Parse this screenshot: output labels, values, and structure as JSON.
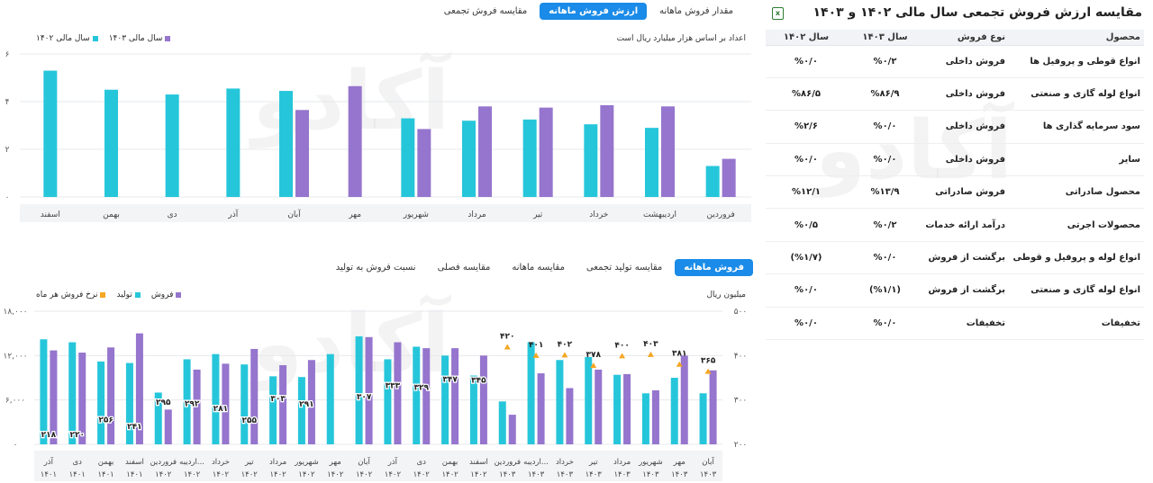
{
  "watermark": "آکادو",
  "table_panel": {
    "title": "مقایسه ارزش فروش تجمعی سال مالی ۱۴۰۲ و ۱۴۰۳",
    "icon": "excel-export-icon",
    "headers": [
      "محصول",
      "نوع فروش",
      "سال ۱۴۰۳",
      "سال ۱۴۰۲"
    ],
    "rows": [
      [
        "انواع قوطی و پروفیل ها",
        "فروش داخلی",
        "%۰/۲",
        "%۰/۰"
      ],
      [
        "انواع لوله گازی و صنعتی",
        "فروش داخلی",
        "%۸۶/۹",
        "%۸۶/۵"
      ],
      [
        "سود سرمایه گذاری ها",
        "فروش داخلی",
        "%۰/۰",
        "%۲/۶"
      ],
      [
        "سایر",
        "فروش داخلی",
        "%۰/۰",
        "%۰/۰"
      ],
      [
        "محصول صادراتی",
        "فروش صادراتی",
        "%۱۳/۹",
        "%۱۲/۱"
      ],
      [
        "محصولات اجرتی",
        "درآمد ارائه خدمات",
        "%۰/۲",
        "%۰/۵"
      ],
      [
        "انواع لوله و پروفیل و قوطی",
        "برگشت از فروش",
        "%۰/۰",
        "(%۱/۷)"
      ],
      [
        "انواع لوله گازی و صنعتی",
        "برگشت از فروش",
        "(%۱/۱)",
        "%۰/۰"
      ],
      [
        "تخفیفات",
        "تخفیفات",
        "%۰/۰",
        "%۰/۰"
      ]
    ]
  },
  "top_chart": {
    "tabs": [
      "مقدار فروش ماهانه",
      "ارزش فروش ماهانه",
      "مقایسه فروش تجمعی"
    ],
    "active_tab": 1,
    "note": "اعداد بر اساس هزار میلیارد ریال است",
    "legend": [
      {
        "label": "سال مالی ۱۴۰۳",
        "color": "#9575cd"
      },
      {
        "label": "سال مالی ۱۴۰۲",
        "color": "#26c6da"
      }
    ]
  },
  "bottom_chart": {
    "tabs": [
      "فروش ماهانه",
      "مقایسه تولید تجمعی",
      "مقایسه ماهانه",
      "مقایسه فصلی",
      "نسبت فروش به تولید"
    ],
    "active_tab": 0,
    "unit_label": "میلیون ریال",
    "legend": [
      {
        "label": "فروش",
        "color": "#9575cd"
      },
      {
        "label": "تولید",
        "color": "#26c6da"
      },
      {
        "label": "نرخ فروش هر ماه",
        "color": "#f5a623"
      }
    ]
  },
  "chart_data": [
    {
      "type": "bar",
      "categories": [
        "فروردین",
        "اردیبهشت",
        "خرداد",
        "تیر",
        "مرداد",
        "شهریور",
        "مهر",
        "آبان",
        "آذر",
        "دی",
        "بهمن",
        "اسفند"
      ],
      "series": [
        {
          "name": "سال مالی ۱۴۰۲",
          "color": "#26c6da",
          "values": [
            1.3,
            2.9,
            3.05,
            3.25,
            3.2,
            3.3,
            null,
            4.45,
            4.55,
            4.3,
            4.5,
            5.3
          ]
        },
        {
          "name": "سال مالی ۱۴۰۳",
          "color": "#9575cd",
          "values": [
            1.6,
            3.8,
            3.85,
            3.75,
            3.8,
            2.85,
            4.65,
            3.65,
            null,
            null,
            null,
            null
          ]
        }
      ],
      "yticks": [
        "۰",
        "۲",
        "۴",
        "۶"
      ],
      "ylim": [
        0,
        6
      ],
      "grid": true
    },
    {
      "type": "bar",
      "categories": [
        [
          "آذر",
          "۱۴۰۱"
        ],
        [
          "دی",
          "۱۴۰۱"
        ],
        [
          "بهمن",
          "۱۴۰۱"
        ],
        [
          "اسفند",
          "۱۴۰۱"
        ],
        [
          "فروردین",
          "۱۴۰۲"
        ],
        [
          "اردیبه...",
          "۱۴۰۲"
        ],
        [
          "خرداد",
          "۱۴۰۲"
        ],
        [
          "تیر",
          "۱۴۰۲"
        ],
        [
          "مرداد",
          "۱۴۰۲"
        ],
        [
          "شهریور",
          "۱۴۰۲"
        ],
        [
          "مهر",
          "۱۴۰۲"
        ],
        [
          "آبان",
          "۱۴۰۲"
        ],
        [
          "آذر",
          "۱۴۰۲"
        ],
        [
          "دی",
          "۱۴۰۲"
        ],
        [
          "بهمن",
          "۱۴۰۲"
        ],
        [
          "اسفند",
          "۱۴۰۲"
        ],
        [
          "فروردین",
          "۱۴۰۳"
        ],
        [
          "اردیبه...",
          "۱۴۰۳"
        ],
        [
          "خرداد",
          "۱۴۰۳"
        ],
        [
          "تیر",
          "۱۴۰۳"
        ],
        [
          "مرداد",
          "۱۴۰۳"
        ],
        [
          "شهریور",
          "۱۴۰۳"
        ],
        [
          "مهر",
          "۱۴۰۳"
        ],
        [
          "آبان",
          "۱۴۰۳"
        ]
      ],
      "series": [
        {
          "name": "تولید",
          "color": "#26c6da",
          "values": [
            14200,
            13800,
            11200,
            11000,
            7000,
            11500,
            12200,
            10800,
            9200,
            9100,
            12200,
            14600,
            11500,
            13200,
            12000,
            9300,
            5800,
            13800,
            11400,
            11800,
            9400,
            6900,
            9000,
            6900
          ]
        },
        {
          "name": "فروش",
          "color": "#9575cd",
          "values": [
            12700,
            12400,
            13100,
            15000,
            4700,
            10100,
            10900,
            12900,
            10700,
            11400,
            0,
            14500,
            13800,
            13000,
            13000,
            12000,
            4000,
            9600,
            7600,
            10100,
            9500,
            7300,
            12000,
            10000
          ]
        }
      ],
      "data_labels": [
        "۲۱۸",
        "۲۲۰",
        "۲۵۶",
        "۲۴۱",
        "۲۹۵",
        "۲۹۲",
        "۲۸۱",
        "۲۵۵",
        "۳۰۳",
        "۲۹۱",
        "",
        "۳۰۷",
        "۳۳۳",
        "۳۲۹",
        "۳۴۷",
        "۳۴۵",
        "۴۲۰",
        "۴۰۱",
        "۴۰۲",
        "۳۷۸",
        "۴۰۰",
        "۴۰۳",
        "۳۸۱",
        "۳۶۵"
      ],
      "rate_series": {
        "name": "نرخ فروش هر ماه",
        "color": "#f5a623",
        "values": [
          218,
          220,
          256,
          241,
          295,
          292,
          281,
          255,
          303,
          291,
          null,
          307,
          333,
          329,
          347,
          345,
          420,
          401,
          402,
          378,
          400,
          403,
          381,
          365
        ]
      },
      "yticks_left": [
        "۰",
        "۶,۰۰۰",
        "۱۲,۰۰۰",
        "۱۸,۰۰۰"
      ],
      "ylim_left": [
        0,
        18000
      ],
      "yticks_right": [
        "۲۰۰",
        "۳۰۰",
        "۴۰۰",
        "۵۰۰"
      ],
      "ylim_right": [
        200,
        500
      ],
      "grid": true
    }
  ]
}
